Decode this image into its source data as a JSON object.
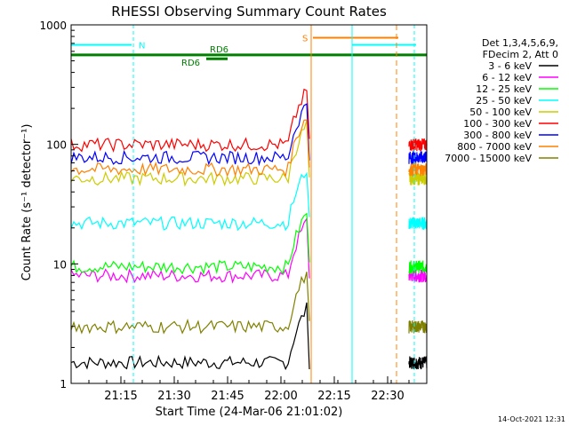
{
  "chart_data": {
    "type": "line",
    "title": "RHESSI Observing Summary Count Rates",
    "xlabel": "Start Time (24-Mar-06 21:01:02)",
    "ylabel": "Count Rate (s⁻¹ detector⁻¹)",
    "yscale": "log",
    "ylim": [
      1,
      1000
    ],
    "xlim": [
      0,
      100
    ],
    "x_ticks": [
      {
        "label": "21:15",
        "x": 14
      },
      {
        "label": "21:30",
        "x": 29
      },
      {
        "label": "21:45",
        "x": 44
      },
      {
        "label": "22:00",
        "x": 59
      },
      {
        "label": "22:15",
        "x": 74
      },
      {
        "label": "22:30",
        "x": 89
      }
    ],
    "y_ticks": [
      {
        "label": "1",
        "value": 1
      },
      {
        "label": "10",
        "value": 10
      },
      {
        "label": "100",
        "value": 100
      },
      {
        "label": "1000",
        "value": 1000
      }
    ],
    "legend_header": [
      "Det 1,3,4,5,6,9,",
      "FDecim 2, Att 0"
    ],
    "series": [
      {
        "name": "3 - 6 keV",
        "color": "#000000",
        "level": 1.5
      },
      {
        "name": "6 - 12 keV",
        "color": "#ff00ff",
        "level": 8
      },
      {
        "name": "12 - 25 keV",
        "color": "#00ff00",
        "level": 9.5
      },
      {
        "name": "25 - 50 keV",
        "color": "#00ffff",
        "level": 22
      },
      {
        "name": "50 - 100 keV",
        "color": "#cccc00",
        "level": 52
      },
      {
        "name": "100 - 300 keV",
        "color": "#ff0000",
        "level": 100
      },
      {
        "name": "300 - 800 keV",
        "color": "#0000ff",
        "level": 78
      },
      {
        "name": "800 - 7000 keV",
        "color": "#ff8000",
        "level": 62
      },
      {
        "name": "7000 - 15000 keV",
        "color": "#808000",
        "level": 3
      }
    ],
    "annotations": [
      {
        "label": "N",
        "color": "#00ffff"
      },
      {
        "label": "S",
        "color": "#ff8000"
      },
      {
        "label": "RD6",
        "color": "#008000"
      },
      {
        "label": "RD6",
        "color": "#008000"
      }
    ],
    "footer_date": "14-Oct-2021 12:31"
  }
}
